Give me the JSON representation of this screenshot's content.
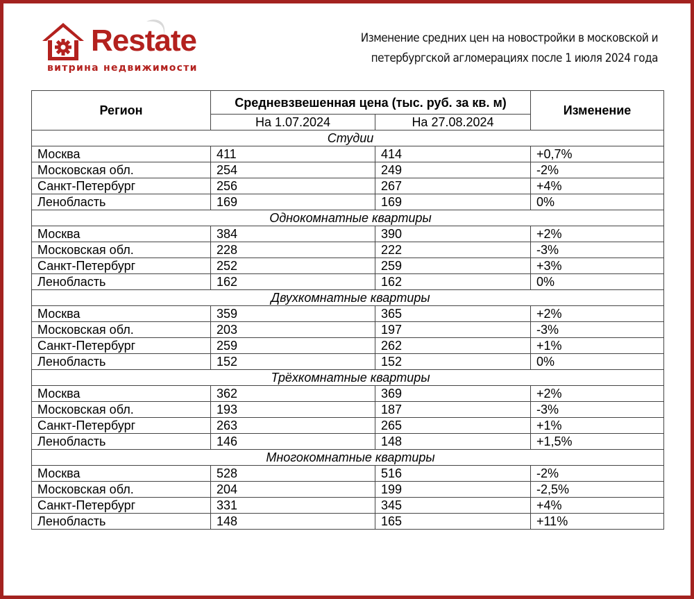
{
  "logo": {
    "word": "Restate",
    "tagline": "витрина недвижимости",
    "brand_color": "#b3211e"
  },
  "title": {
    "line1": "Изменение средних цен на новостройки в московской и",
    "line2": "петербургской агломерациях после 1 июля 2024 года"
  },
  "table": {
    "headers": {
      "region": "Регион",
      "price": "Средневзвешенная цена (тыс. руб. за кв. м)",
      "date1": "На 1.07.2024",
      "date2": "На 27.08.2024",
      "change": "Изменение"
    },
    "sections": [
      {
        "title": "Студии",
        "rows": [
          [
            "Москва",
            "411",
            "414",
            "+0,7%"
          ],
          [
            "Московская обл.",
            "254",
            "249",
            "-2%"
          ],
          [
            "Санкт-Петербург",
            "256",
            "267",
            "+4%"
          ],
          [
            "Ленобласть",
            "169",
            "169",
            "0%"
          ]
        ]
      },
      {
        "title": "Однокомнатные квартиры",
        "rows": [
          [
            "Москва",
            "384",
            "390",
            "+2%"
          ],
          [
            "Московская обл.",
            "228",
            "222",
            "-3%"
          ],
          [
            "Санкт-Петербург",
            "252",
            "259",
            "+3%"
          ],
          [
            "Ленобласть",
            "162",
            "162",
            "0%"
          ]
        ]
      },
      {
        "title": "Двухкомнатные квартиры",
        "rows": [
          [
            "Москва",
            "359",
            "365",
            "+2%"
          ],
          [
            "Московская обл.",
            "203",
            "197",
            "-3%"
          ],
          [
            "Санкт-Петербург",
            "259",
            "262",
            "+1%"
          ],
          [
            "Ленобласть",
            "152",
            "152",
            "0%"
          ]
        ]
      },
      {
        "title": "Трёхкомнатные квартиры",
        "rows": [
          [
            "Москва",
            "362",
            "369",
            "+2%"
          ],
          [
            "Московская обл.",
            "193",
            "187",
            "-3%"
          ],
          [
            "Санкт-Петербург",
            "263",
            "265",
            "+1%"
          ],
          [
            "Ленобласть",
            "146",
            "148",
            "+1,5%"
          ]
        ]
      },
      {
        "title": "Многокомнатные квартиры",
        "rows": [
          [
            "Москва",
            "528",
            "516",
            "-2%"
          ],
          [
            "Московская обл.",
            "204",
            "199",
            "-2,5%"
          ],
          [
            "Санкт-Петербург",
            "331",
            "345",
            "+4%"
          ],
          [
            "Ленобласть",
            "148",
            "165",
            "+11%"
          ]
        ]
      }
    ]
  },
  "chart_data": {
    "type": "table",
    "columns": [
      "Регион",
      "На 1.07.2024",
      "На 27.08.2024",
      "Изменение"
    ]
  }
}
